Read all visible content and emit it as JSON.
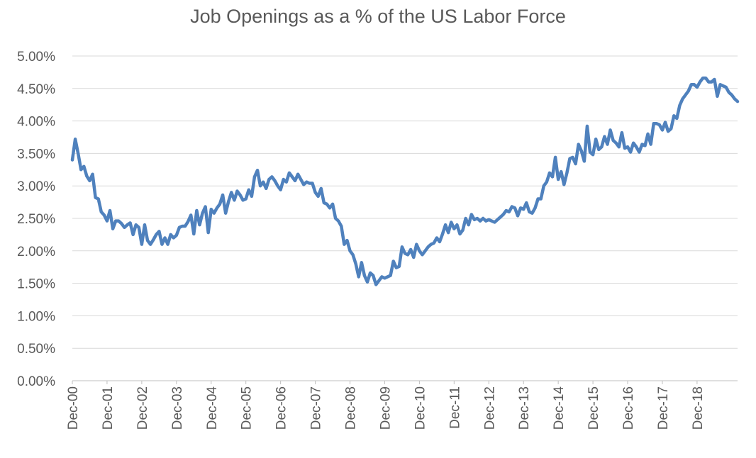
{
  "chart_data": {
    "type": "line",
    "title": "Job Openings as a % of the US Labor Force",
    "xlabel": "",
    "ylabel": "",
    "ylim": [
      0,
      5
    ],
    "yticks": [
      "0.00%",
      "0.50%",
      "1.00%",
      "1.50%",
      "2.00%",
      "2.50%",
      "3.00%",
      "3.50%",
      "4.00%",
      "4.50%",
      "5.00%"
    ],
    "x_tick_labels": [
      "Dec-00",
      "Dec-01",
      "Dec-02",
      "Dec-03",
      "Dec-04",
      "Dec-05",
      "Dec-06",
      "Dec-07",
      "Dec-08",
      "Dec-09",
      "Dec-10",
      "Dec-11",
      "Dec-12",
      "Dec-13",
      "Dec-14",
      "Dec-15",
      "Dec-16",
      "Dec-17",
      "Dec-18"
    ],
    "x_start": "Dec-00",
    "x_end": "Jun-19",
    "grid": true,
    "legend": "none",
    "series_color": "#4f81bd",
    "series": [
      {
        "values": [
          3.4,
          3.72,
          3.5,
          3.25,
          3.3,
          3.15,
          3.08,
          3.18,
          2.82,
          2.8,
          2.6,
          2.55,
          2.46,
          2.62,
          2.34,
          2.46,
          2.46,
          2.42,
          2.36,
          2.4,
          2.43,
          2.25,
          2.4,
          2.36,
          2.1,
          2.4,
          2.16,
          2.1,
          2.17,
          2.25,
          2.3,
          2.1,
          2.2,
          2.1,
          2.25,
          2.2,
          2.24,
          2.36,
          2.38,
          2.38,
          2.45,
          2.55,
          2.26,
          2.62,
          2.4,
          2.58,
          2.68,
          2.28,
          2.64,
          2.58,
          2.66,
          2.72,
          2.86,
          2.58,
          2.76,
          2.9,
          2.78,
          2.92,
          2.86,
          2.78,
          2.8,
          2.94,
          2.84,
          3.14,
          3.24,
          3.0,
          3.06,
          2.96,
          3.1,
          3.14,
          3.08,
          3.0,
          2.94,
          3.1,
          3.06,
          3.2,
          3.14,
          3.08,
          3.18,
          3.1,
          3.02,
          3.06,
          3.04,
          3.04,
          2.9,
          2.84,
          2.96,
          2.74,
          2.72,
          2.66,
          2.72,
          2.5,
          2.46,
          2.38,
          2.1,
          2.16,
          2.0,
          1.94,
          1.8,
          1.6,
          1.82,
          1.62,
          1.52,
          1.66,
          1.62,
          1.48,
          1.54,
          1.6,
          1.58,
          1.6,
          1.62,
          1.84,
          1.74,
          1.76,
          2.06,
          1.96,
          1.94,
          2.02,
          1.9,
          2.1,
          2.0,
          1.94,
          2.0,
          2.06,
          2.1,
          2.12,
          2.2,
          2.14,
          2.26,
          2.4,
          2.28,
          2.44,
          2.34,
          2.4,
          2.26,
          2.32,
          2.5,
          2.4,
          2.56,
          2.48,
          2.5,
          2.46,
          2.5,
          2.46,
          2.48,
          2.46,
          2.44,
          2.48,
          2.52,
          2.56,
          2.62,
          2.6,
          2.68,
          2.66,
          2.54,
          2.66,
          2.64,
          2.74,
          2.6,
          2.58,
          2.66,
          2.8,
          2.8,
          3.0,
          3.06,
          3.2,
          3.14,
          3.44,
          3.1,
          3.22,
          3.02,
          3.2,
          3.42,
          3.44,
          3.34,
          3.64,
          3.54,
          3.38,
          3.92,
          3.52,
          3.48,
          3.72,
          3.56,
          3.6,
          3.76,
          3.64,
          3.86,
          3.7,
          3.66,
          3.6,
          3.82,
          3.58,
          3.6,
          3.52,
          3.66,
          3.6,
          3.52,
          3.64,
          3.62,
          3.8,
          3.64,
          3.96,
          3.96,
          3.94,
          3.86,
          3.98,
          3.84,
          3.88,
          4.08,
          4.04,
          4.24,
          4.34,
          4.4,
          4.46,
          4.56,
          4.56,
          4.52,
          4.6,
          4.66,
          4.66,
          4.6,
          4.6,
          4.64,
          4.38,
          4.56,
          4.54,
          4.52,
          4.44,
          4.4,
          4.34,
          4.3
        ]
      }
    ]
  }
}
